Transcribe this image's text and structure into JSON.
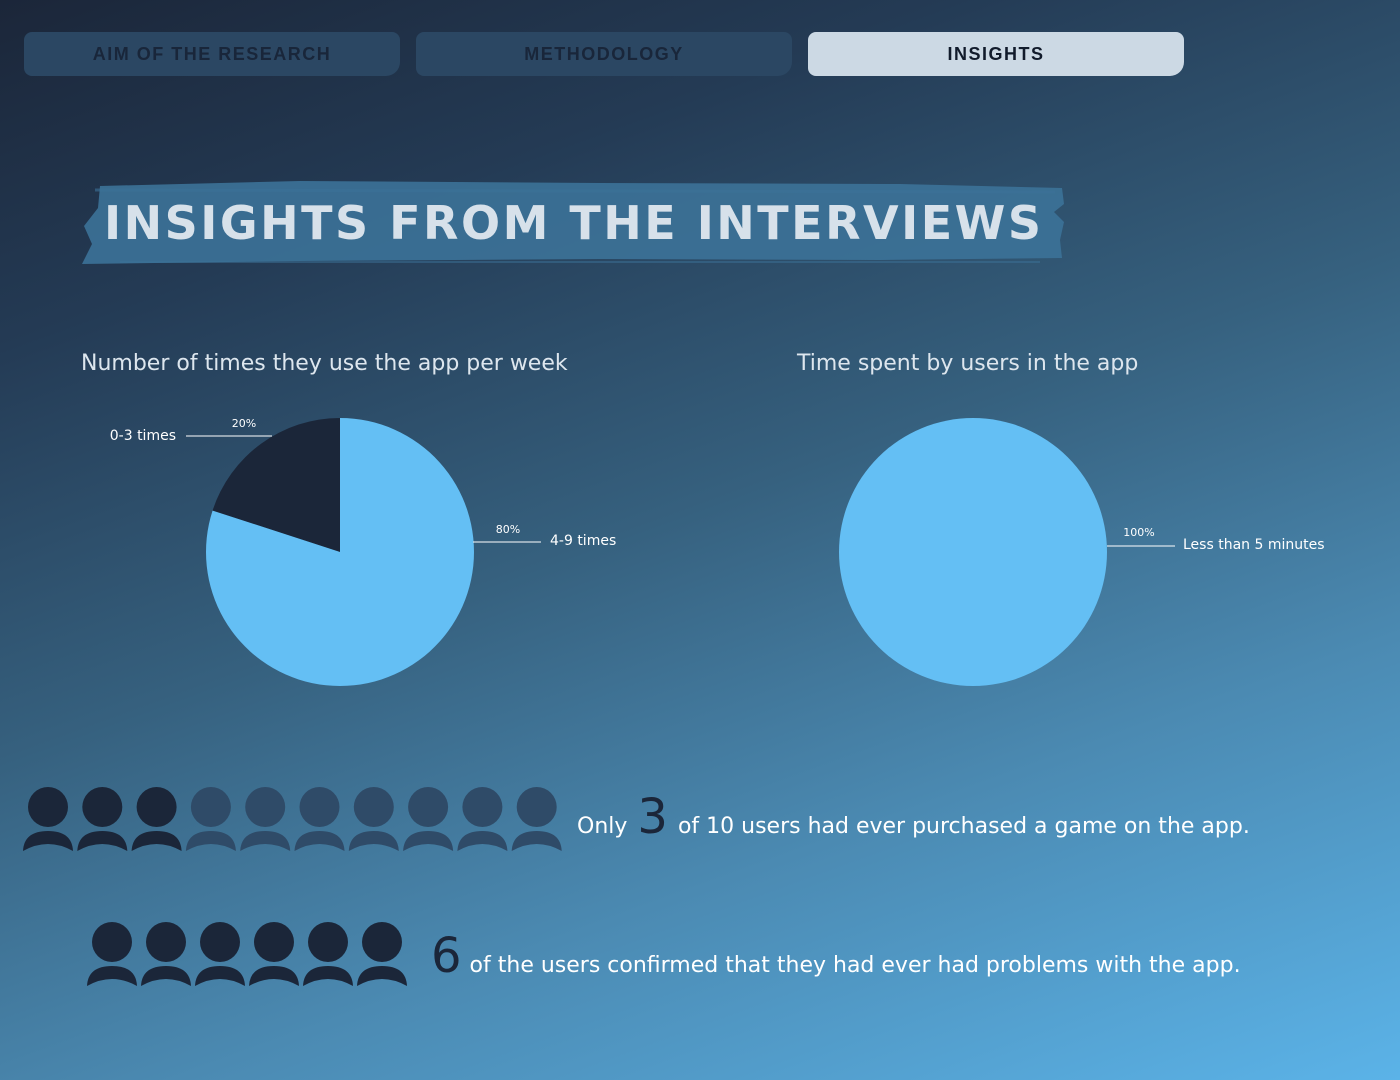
{
  "tabs": [
    {
      "label": "AIM OF THE RESEARCH",
      "active": false
    },
    {
      "label": "METHODOLOGY",
      "active": false
    },
    {
      "label": "INSIGHTS",
      "active": true
    }
  ],
  "heading": "INSIGHTS FROM THE INTERVIEWS",
  "colors": {
    "accent": "#64bff4",
    "dark": "#1b2639",
    "muted_user": "#2f4b68",
    "label_text": "#ffffff",
    "brush": "#3c7298"
  },
  "chart_data": [
    {
      "type": "pie",
      "title": "Number of times they use the app per week",
      "slices": [
        {
          "label": "0-3 times",
          "value": 20,
          "percent_label": "20%",
          "color": "#1b2639"
        },
        {
          "label": "4-9 times",
          "value": 80,
          "percent_label": "80%",
          "color": "#64bff4"
        }
      ]
    },
    {
      "type": "pie",
      "title": "Time spent by users in the app",
      "slices": [
        {
          "label": "Less than 5 minutes",
          "value": 100,
          "percent_label": "100%",
          "color": "#64bff4"
        }
      ]
    }
  ],
  "insights": [
    {
      "prefix": "Only",
      "number": "3",
      "text": "of 10 users had ever purchased a game on the app.",
      "highlighted": 3,
      "total": 10
    },
    {
      "prefix": "",
      "number": "6",
      "text": "of the users confirmed that they had ever had problems with the app.",
      "highlighted": 6,
      "total": 6
    }
  ]
}
